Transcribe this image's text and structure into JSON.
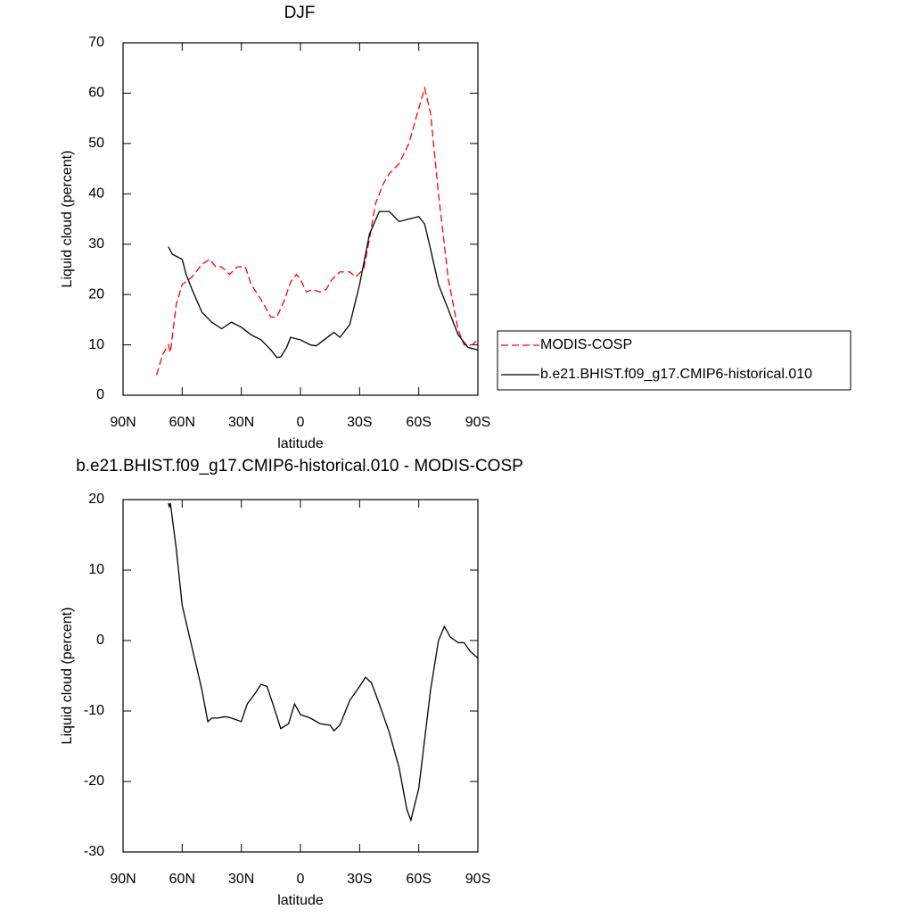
{
  "chart_data": [
    {
      "type": "line",
      "title": "DJF",
      "xlabel": "latitude",
      "ylabel": "Liquid cloud (percent)",
      "xlim": [
        90,
        -90
      ],
      "xticks": [
        {
          "value": 90,
          "label": "90N"
        },
        {
          "value": 60,
          "label": "60N"
        },
        {
          "value": 30,
          "label": "30N"
        },
        0,
        {
          "value": -30,
          "label": "30S"
        },
        {
          "value": -60,
          "label": "60S"
        },
        {
          "value": -90,
          "label": "90S"
        }
      ],
      "ylim": [
        0,
        70
      ],
      "yticks": [
        0,
        10,
        20,
        30,
        40,
        50,
        60,
        70
      ],
      "legend": "right",
      "series": [
        {
          "name": "MODIS-COSP",
          "color": "#ff0000",
          "linestyle": "dashed",
          "x": [
            73,
            70,
            67,
            66,
            63,
            60,
            55,
            50,
            46,
            43,
            40,
            36,
            32,
            28,
            25,
            20,
            15,
            12,
            8,
            5,
            2,
            0,
            -3,
            -6,
            -10,
            -13,
            -16,
            -20,
            -25,
            -28,
            -32,
            -35,
            -38,
            -42,
            -45,
            -50,
            -55,
            -60,
            -63,
            -66,
            -70,
            -75,
            -80,
            -83,
            -87,
            -90
          ],
          "values": [
            4,
            8,
            10,
            8.5,
            18,
            22,
            23.5,
            26,
            27,
            25.5,
            25.5,
            24,
            25.5,
            25.5,
            22,
            19,
            15.5,
            15.5,
            19,
            22.5,
            24,
            23,
            20.5,
            21,
            20.5,
            21,
            23,
            24.5,
            24.5,
            23.5,
            25,
            31,
            38,
            42,
            44,
            46,
            50,
            57,
            61,
            56,
            40,
            23,
            13,
            10,
            10,
            11
          ]
        },
        {
          "name": "b.e21.BHIST.f09_g17.CMIP6-historical.010",
          "color": "#000000",
          "linestyle": "solid",
          "x": [
            67,
            65,
            60,
            58,
            55,
            50,
            45,
            40,
            35,
            30,
            25,
            20,
            15,
            12,
            10,
            7,
            5,
            0,
            -5,
            -8,
            -12,
            -17,
            -20,
            -25,
            -30,
            -35,
            -40,
            -45,
            -50,
            -55,
            -60,
            -63,
            -66,
            -70,
            -75,
            -80,
            -85,
            -90
          ],
          "values": [
            29.5,
            28,
            27,
            24,
            21,
            16.5,
            14.5,
            13.2,
            14.5,
            13.5,
            12,
            11,
            9,
            7.5,
            7.6,
            9.5,
            11.5,
            11,
            10,
            9.8,
            11,
            12.5,
            11.5,
            14,
            22,
            32,
            36.5,
            36.5,
            34.5,
            35,
            35.5,
            34,
            29,
            22,
            17,
            12,
            9.5,
            9
          ]
        }
      ]
    },
    {
      "type": "line",
      "title": "b.e21.BHIST.f09_g17.CMIP6-historical.010 - MODIS-COSP",
      "xlabel": "latitude",
      "ylabel": "Liquid cloud (percent)",
      "xlim": [
        90,
        -90
      ],
      "xticks": [
        {
          "value": 90,
          "label": "90N"
        },
        {
          "value": 60,
          "label": "60N"
        },
        {
          "value": 30,
          "label": "30N"
        },
        0,
        {
          "value": -30,
          "label": "30S"
        },
        {
          "value": -60,
          "label": "60S"
        },
        {
          "value": -90,
          "label": "90S"
        }
      ],
      "ylim": [
        -30,
        20
      ],
      "yticks": [
        -30,
        -20,
        -10,
        0,
        10,
        20
      ],
      "series": [
        {
          "color": "#000000",
          "linestyle": "solid",
          "x": [
            67,
            66.5,
            66,
            63,
            60,
            55,
            50,
            47,
            45,
            42,
            38,
            35,
            30,
            27,
            23,
            20,
            17,
            14,
            10,
            6,
            3,
            0,
            -5,
            -10,
            -15,
            -17,
            -20,
            -25,
            -30,
            -33,
            -36,
            -40,
            -45,
            -50,
            -54,
            -56,
            -60,
            -63,
            -66,
            -70,
            -73,
            -76,
            -80,
            -83,
            -86,
            -90
          ],
          "values": [
            19.5,
            19,
            19.5,
            13,
            5,
            -1,
            -7,
            -11.5,
            -11,
            -11,
            -10.8,
            -11,
            -11.5,
            -9,
            -7.5,
            -6.2,
            -6.5,
            -9,
            -12.5,
            -11.8,
            -9,
            -10.5,
            -11,
            -11.8,
            -12,
            -12.8,
            -12,
            -8.5,
            -6.5,
            -5.2,
            -6,
            -9,
            -13,
            -18,
            -24,
            -25.5,
            -21,
            -14,
            -7,
            0,
            2,
            0.5,
            -0.3,
            -0.3,
            -1.5,
            -2.5
          ]
        }
      ]
    }
  ]
}
